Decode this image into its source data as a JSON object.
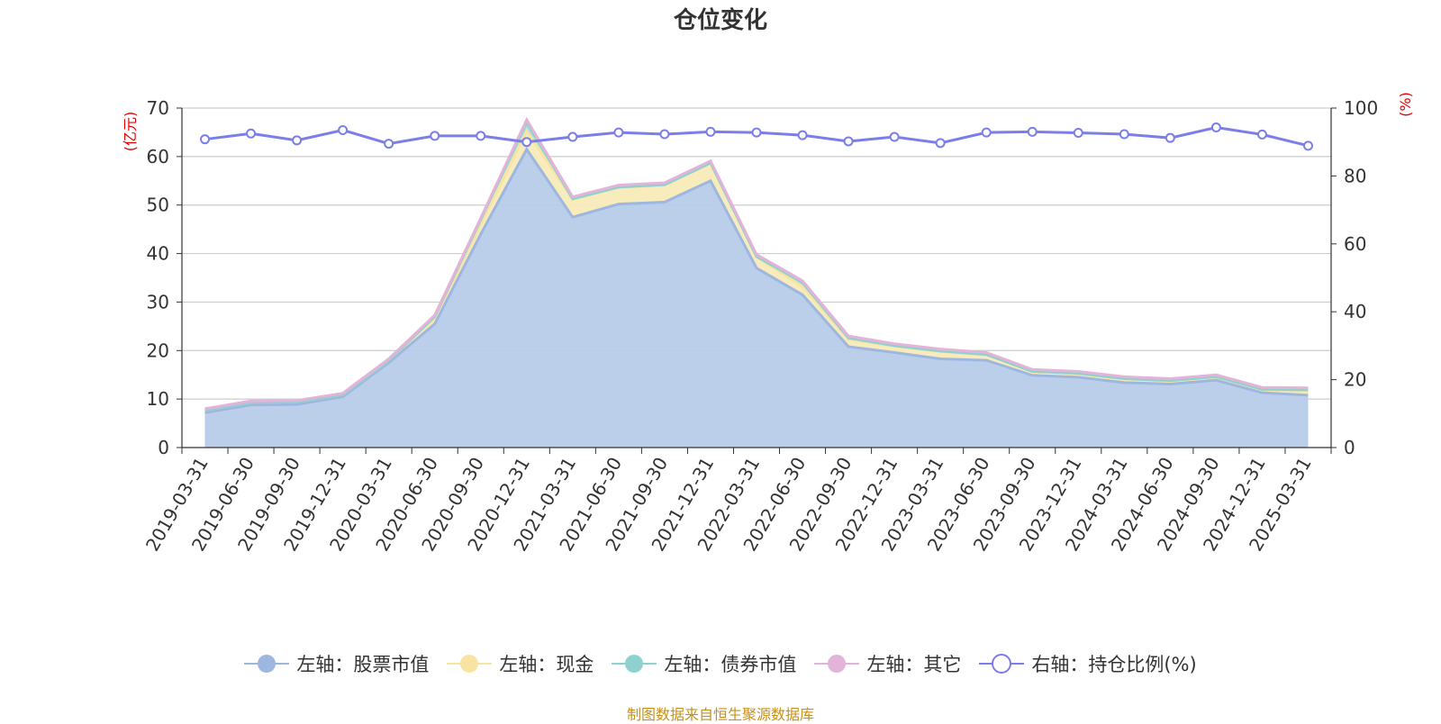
{
  "title": "仓位变化",
  "source_note": "制图数据来自恒生聚源数据库",
  "colors": {
    "stock": "#9db7e0",
    "stock_fill": "#b7cbe9",
    "cash": "#f7e4a3",
    "cash_fill": "#f8eab8",
    "bond": "#8fd1cf",
    "bond_fill": "#a9dcd9",
    "other": "#e4b3da",
    "ratio": "#7b7ee8",
    "unit_red": "#e60000",
    "source_text": "#c7901a"
  },
  "chart_data": {
    "type": "area",
    "title": "仓位变化",
    "x": [
      "2019-03-31",
      "2019-06-30",
      "2019-09-30",
      "2019-12-31",
      "2020-03-31",
      "2020-06-30",
      "2020-09-30",
      "2020-12-31",
      "2021-03-31",
      "2021-06-30",
      "2021-09-30",
      "2021-12-31",
      "2022-03-31",
      "2022-06-30",
      "2022-09-30",
      "2022-12-31",
      "2023-03-31",
      "2023-06-30",
      "2023-09-30",
      "2023-12-31",
      "2024-03-31",
      "2024-06-30",
      "2024-09-30",
      "2024-12-31",
      "2025-03-31"
    ],
    "left_axis": {
      "unit": "(亿元)",
      "ylim": [
        0,
        70
      ],
      "ticks": [
        "0",
        "10",
        "20",
        "30",
        "40",
        "50",
        "60",
        "70"
      ]
    },
    "right_axis": {
      "unit": "(%)",
      "ylim": [
        0,
        100
      ],
      "ticks": [
        "0",
        "20",
        "40",
        "60",
        "80",
        "100"
      ]
    },
    "grid": true,
    "legend_position": "bottom",
    "stacked_series": [
      {
        "name": "左轴：股票市值",
        "key": "stock",
        "values": [
          7.2,
          8.8,
          8.9,
          10.5,
          17.5,
          25.5,
          44.0,
          61.5,
          47.5,
          50.2,
          50.6,
          55.0,
          37.0,
          31.5,
          20.8,
          19.6,
          18.3,
          18.0,
          14.9,
          14.5,
          13.4,
          13.1,
          13.9,
          11.3,
          10.8
        ]
      },
      {
        "name": "左轴：现金",
        "key": "cash",
        "values": [
          0.5,
          0.5,
          0.5,
          0.4,
          0.5,
          1.2,
          2.0,
          3.8,
          3.7,
          3.4,
          3.5,
          3.6,
          2.3,
          1.7,
          1.5,
          1.3,
          1.5,
          1.1,
          0.7,
          0.7,
          0.7,
          0.6,
          0.6,
          0.6,
          0.8
        ]
      },
      {
        "name": "左轴：债券市值",
        "key": "bond",
        "values": [
          0,
          0,
          0,
          0,
          0,
          0.3,
          1.0,
          1.8,
          0.1,
          0.1,
          0.1,
          0.1,
          0.1,
          0.8,
          0.3,
          0.1,
          0.1,
          0.1,
          0.1,
          0.1,
          0.1,
          0.1,
          0.1,
          0.1,
          0.3
        ]
      },
      {
        "name": "左轴：其它",
        "key": "other",
        "values": [
          0.3,
          0.3,
          0.3,
          0.3,
          0.3,
          0.3,
          0.3,
          0.5,
          0.4,
          0.4,
          0.4,
          0.4,
          0.4,
          0.4,
          0.4,
          0.4,
          0.4,
          0.4,
          0.4,
          0.4,
          0.4,
          0.4,
          0.4,
          0.4,
          0.4
        ]
      }
    ],
    "line_series": {
      "name": "右轴：持仓比例(%)",
      "key": "ratio",
      "values": [
        90.8,
        92.5,
        90.5,
        93.5,
        89.5,
        91.8,
        91.8,
        90.0,
        91.5,
        92.8,
        92.3,
        93.0,
        92.8,
        92.0,
        90.2,
        91.5,
        89.7,
        92.8,
        93.0,
        92.7,
        92.3,
        91.2,
        94.3,
        92.2,
        88.9
      ]
    }
  },
  "legend": [
    {
      "label": "左轴：股票市值",
      "icon": "filled-circle",
      "color": "#9db7e0"
    },
    {
      "label": "左轴：现金",
      "icon": "filled-circle",
      "color": "#f7e4a3"
    },
    {
      "label": "左轴：债券市值",
      "icon": "filled-circle",
      "color": "#8fd1cf"
    },
    {
      "label": "左轴：其它",
      "icon": "filled-circle",
      "color": "#e4b3da"
    },
    {
      "label": "右轴：持仓比例(%)",
      "icon": "hollow-circle",
      "color": "#7b7ee8"
    }
  ]
}
